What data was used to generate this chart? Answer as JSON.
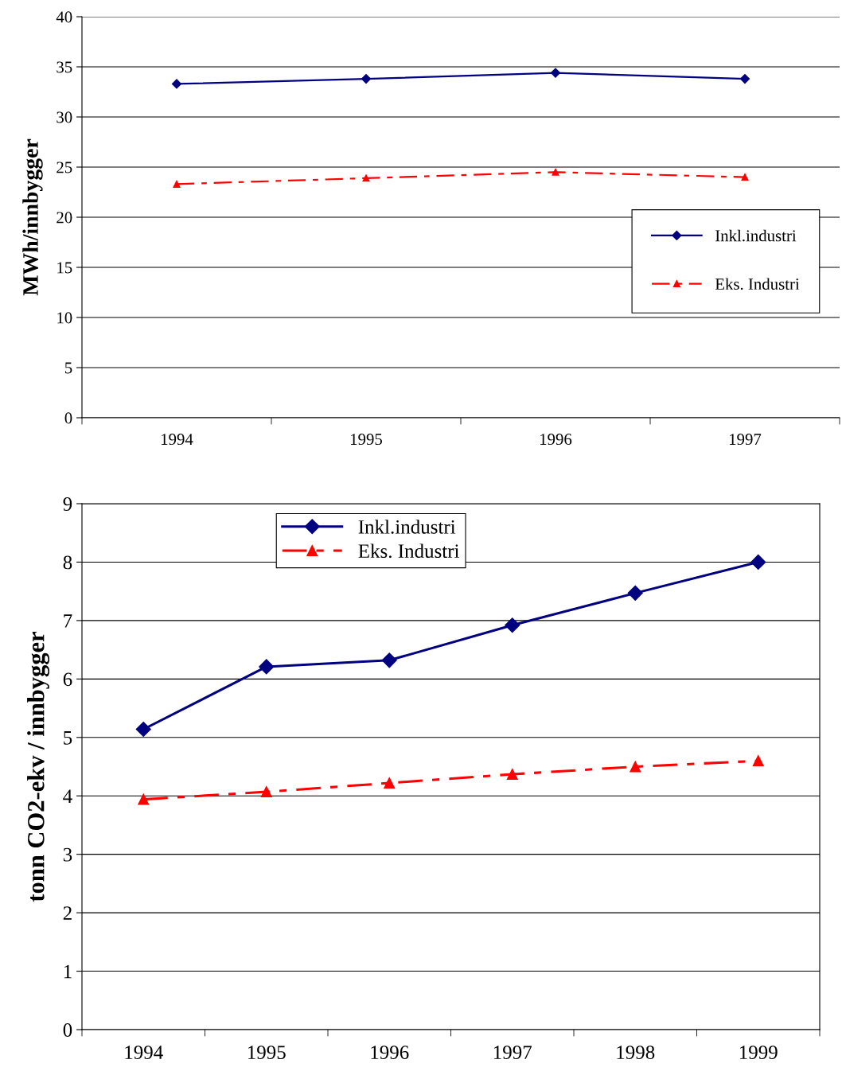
{
  "chart_data": [
    {
      "type": "line",
      "ylabel": "MWh/innbygger",
      "categories": [
        "1994",
        "1995",
        "1996",
        "1997"
      ],
      "ylim": [
        0,
        40
      ],
      "yticks": [
        0,
        5,
        10,
        15,
        20,
        25,
        30,
        35,
        40
      ],
      "grid": "y",
      "legend": "right",
      "series": [
        {
          "name": "Inkl.industri",
          "color": "#000080",
          "marker": "diamond",
          "line_style": "solid",
          "values": [
            33.3,
            33.8,
            34.4,
            33.8
          ]
        },
        {
          "name": "Eks. Industri",
          "color": "#ff0000",
          "marker": "triangle",
          "line_style": "dashdot",
          "values": [
            23.3,
            23.9,
            24.5,
            24.0
          ]
        }
      ]
    },
    {
      "type": "line",
      "ylabel": "tonn CO2-ekv / innbygger",
      "categories": [
        "1994",
        "1995",
        "1996",
        "1997",
        "1998",
        "1999"
      ],
      "ylim": [
        0,
        9
      ],
      "yticks": [
        0,
        1,
        2,
        3,
        4,
        5,
        6,
        7,
        8,
        9
      ],
      "grid": "y",
      "legend": "top",
      "series": [
        {
          "name": "Inkl.industri",
          "color": "#000080",
          "marker": "diamond",
          "line_style": "solid",
          "values": [
            5.14,
            6.21,
            6.32,
            6.92,
            7.47,
            8.0
          ]
        },
        {
          "name": "Eks. Industri",
          "color": "#ff0000",
          "marker": "triangle",
          "line_style": "dashdot",
          "values": [
            3.94,
            4.07,
            4.22,
            4.37,
            4.5,
            4.6
          ]
        }
      ]
    }
  ]
}
